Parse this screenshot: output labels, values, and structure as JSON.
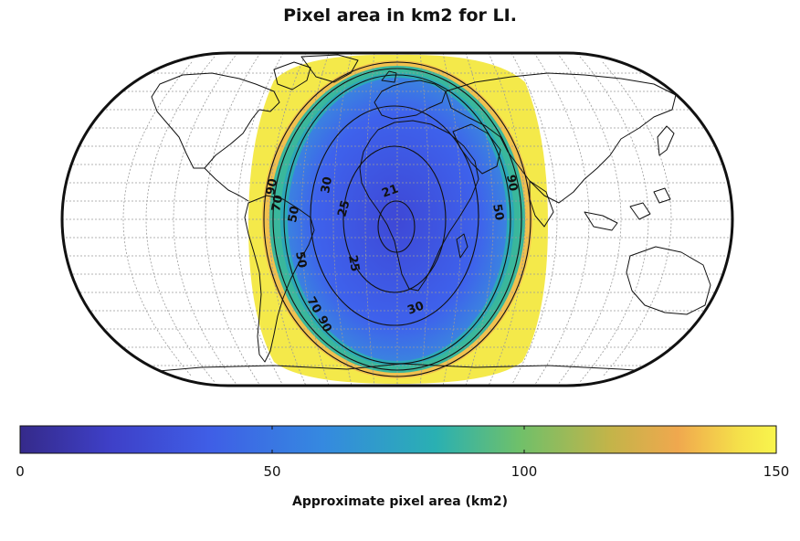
{
  "title": "Pixel area in km2 for LI.",
  "colorbar": {
    "label": "Approximate pixel area (km2)",
    "ticks": [
      "0",
      "50",
      "100",
      "150"
    ],
    "min": 0,
    "max": 150,
    "colormap": [
      "#3b2e96",
      "#3d4bd8",
      "#3f6fec",
      "#3196d8",
      "#2ab3a6",
      "#7cc267",
      "#c9b84a",
      "#f0a54c",
      "#f6e64a",
      "#f9f64e"
    ]
  },
  "contour_labels": [
    "21",
    "25",
    "25",
    "30",
    "30",
    "50",
    "50",
    "50",
    "70",
    "70",
    "90",
    "90",
    "90"
  ],
  "colors": {
    "outline": "#111111",
    "grid": "#9a9a9a",
    "coast": "#111111",
    "outer_fill": "#f4e94a"
  }
}
